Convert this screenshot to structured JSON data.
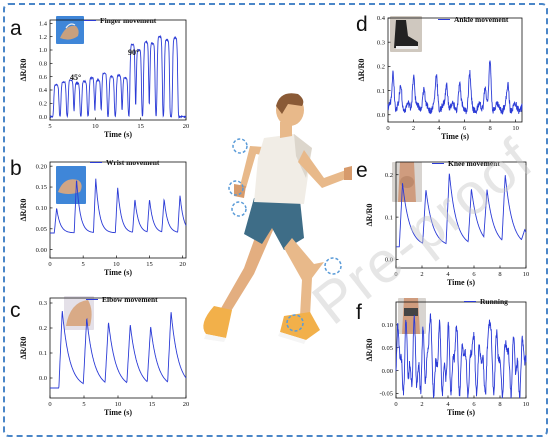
{
  "watermark": "Pre-proof",
  "figure": {
    "colors": {
      "frame": "#4a86c8",
      "line": "#2b3bd6",
      "joint_marker": "#5a9bd8"
    },
    "panels": {
      "a": {
        "letter": "a",
        "title": "Finger movement",
        "annotations": [
          "45°",
          "90°"
        ]
      },
      "b": {
        "letter": "b",
        "title": "Wrist movement"
      },
      "c": {
        "letter": "c",
        "title": "Elbow movement"
      },
      "d": {
        "letter": "d",
        "title": "Ankle movement"
      },
      "e": {
        "letter": "e",
        "title": "Knee movement"
      },
      "f": {
        "letter": "f",
        "title": "Running"
      }
    }
  },
  "chart_data": [
    {
      "id": "a",
      "type": "line",
      "title": "Finger movement",
      "xlabel": "Time (s)",
      "ylabel": "ΔR/R0",
      "xlim": [
        5,
        20
      ],
      "ylim": [
        -0.05,
        1.45
      ],
      "xticks": [
        "5",
        "10",
        "15",
        "20"
      ],
      "yticks": [
        "0.0",
        "0.2",
        "0.4",
        "0.6",
        "0.8",
        "1.0",
        "1.2",
        "1.4"
      ],
      "peaks_x": [
        5.7,
        6.5,
        7.3,
        8.0,
        8.8,
        9.6,
        10.3,
        11.0,
        11.8,
        12.6,
        13.3,
        14.1,
        14.8,
        15.6,
        16.3,
        17.1,
        17.9,
        18.8
      ],
      "peaks_y": [
        0.48,
        0.52,
        0.55,
        0.5,
        0.53,
        0.58,
        0.55,
        0.65,
        0.6,
        0.62,
        0.58,
        1.08,
        1.0,
        1.12,
        1.1,
        1.2,
        1.15,
        1.18
      ],
      "baseline": 0.0,
      "peak_shape": "square"
    },
    {
      "id": "b",
      "type": "line",
      "title": "Wrist movement",
      "xlabel": "Time (s)",
      "ylabel": "ΔR/R0",
      "xlim": [
        0,
        20.5
      ],
      "ylim": [
        -0.02,
        0.21
      ],
      "xticks": [
        "0",
        "5",
        "10",
        "15",
        "20"
      ],
      "yticks": [
        "0.00",
        "0.05",
        "0.10",
        "0.15",
        "0.20"
      ],
      "peaks_x": [
        1.0,
        4.0,
        6.9,
        10.2,
        12.8,
        15.0,
        17.2,
        19.6
      ],
      "peaks_y": [
        0.1,
        0.17,
        0.17,
        0.15,
        0.12,
        0.12,
        0.12,
        0.13
      ],
      "baseline": 0.04,
      "peak_shape": "sharp"
    },
    {
      "id": "c",
      "type": "line",
      "title": "Elbow movement",
      "xlabel": "Time (s)",
      "ylabel": "ΔR/R0",
      "xlim": [
        0,
        20
      ],
      "ylim": [
        -0.08,
        0.32
      ],
      "xticks": [
        "0",
        "5",
        "10",
        "15",
        "20"
      ],
      "yticks": [
        "0.0",
        "0.1",
        "0.2",
        "0.3"
      ],
      "peaks_x": [
        1.8,
        5.4,
        8.6,
        11.8,
        14.8,
        17.8
      ],
      "peaks_y": [
        0.27,
        0.23,
        0.21,
        0.2,
        0.19,
        0.25
      ],
      "baseline": -0.04,
      "peak_shape": "decay"
    },
    {
      "id": "d",
      "type": "line",
      "title": "Ankle movement",
      "xlabel": "Time (s)",
      "ylabel": "ΔR/R0",
      "xlim": [
        0,
        10.5
      ],
      "ylim": [
        -0.03,
        0.4
      ],
      "xticks": [
        "0",
        "2",
        "4",
        "6",
        "8",
        "10"
      ],
      "yticks": [
        "0.0",
        "0.1",
        "0.2",
        "0.3",
        "0.4"
      ],
      "peaks_x": [
        0.4,
        1.0,
        2.0,
        2.8,
        3.8,
        4.6,
        5.6,
        6.4,
        7.6,
        8.0,
        9.4
      ],
      "peaks_y": [
        0.18,
        0.12,
        0.17,
        0.1,
        0.16,
        0.13,
        0.12,
        0.16,
        0.12,
        0.22,
        0.12
      ],
      "baseline": 0.03,
      "peak_shape": "noisy"
    },
    {
      "id": "e",
      "type": "line",
      "title": "Knee movement",
      "xlabel": "Time (s)",
      "ylabel": "ΔR/R0",
      "xlim": [
        0,
        10
      ],
      "ylim": [
        -0.02,
        0.23
      ],
      "xticks": [
        "0",
        "2",
        "4",
        "6",
        "8",
        "10"
      ],
      "yticks": [
        "0.0",
        "0.1",
        "0.2"
      ],
      "peaks_x": [
        0.5,
        2.3,
        4.1,
        5.8,
        7.0,
        8.4,
        9.9
      ],
      "peaks_y": [
        0.18,
        0.16,
        0.2,
        0.16,
        0.15,
        0.19,
        0.06
      ],
      "baseline": 0.03,
      "peak_shape": "decay"
    },
    {
      "id": "f",
      "type": "line",
      "title": "Running",
      "xlabel": "Time (s)",
      "ylabel": "ΔR/R0",
      "xlim": [
        0,
        10
      ],
      "ylim": [
        -0.06,
        0.15
      ],
      "xticks": [
        "0",
        "2",
        "4",
        "6",
        "8",
        "10"
      ],
      "yticks": [
        "-0.05",
        "0.00",
        "0.05",
        "0.10"
      ],
      "peaks_x": [
        0.2,
        0.8,
        1.4,
        2.1,
        2.6,
        3.3,
        4.0,
        4.6,
        5.2,
        5.9,
        6.5,
        7.2,
        7.8,
        8.5,
        9.1,
        9.8
      ],
      "peaks_y": [
        0.1,
        0.08,
        0.09,
        0.06,
        0.13,
        0.09,
        0.07,
        0.1,
        0.07,
        0.09,
        0.06,
        0.14,
        0.08,
        0.08,
        0.06,
        0.07
      ],
      "baseline": -0.02,
      "peak_shape": "oscillating"
    }
  ]
}
